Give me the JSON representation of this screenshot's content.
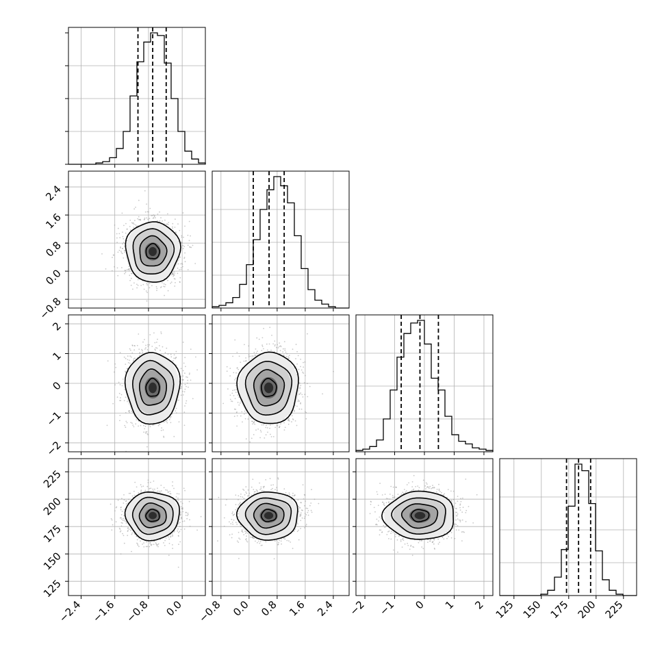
{
  "chart_data": {
    "type": "corner",
    "n_params": 4,
    "grid": true,
    "params": [
      {
        "range": [
          -2.7,
          0.55
        ],
        "ticks": [
          -2.4,
          -1.6,
          -0.8,
          0.0
        ],
        "tick_labels": [
          "−2.4",
          "−1.6",
          "−0.8",
          "0.0"
        ],
        "quantiles": [
          -1.05,
          -0.7,
          -0.38
        ],
        "mean": -0.7,
        "sd": 0.32,
        "hist": {
          "edges": [
            -2.7,
            -2.5375,
            -2.375,
            -2.2125,
            -2.05,
            -1.8875,
            -1.725,
            -1.5625,
            -1.4,
            -1.2375,
            -1.075,
            -0.9125,
            -0.75,
            -0.5875,
            -0.425,
            -0.2625,
            -0.1,
            0.0625,
            0.225,
            0.3875,
            0.55
          ],
          "heights": [
            0,
            0,
            0,
            0,
            0.01,
            0.02,
            0.05,
            0.12,
            0.25,
            0.52,
            0.78,
            0.93,
            1.0,
            0.98,
            0.77,
            0.5,
            0.25,
            0.1,
            0.04,
            0.01
          ]
        }
      },
      {
        "range": [
          -1.05,
          2.85
        ],
        "ticks": [
          -0.8,
          0.0,
          0.8,
          1.6,
          2.4
        ],
        "tick_labels": [
          "−0.8",
          "0.0",
          "0.8",
          "1.6",
          "2.4"
        ],
        "quantiles": [
          0.12,
          0.57,
          1.0
        ],
        "mean": 0.56,
        "sd": 0.43,
        "hist": {
          "edges": [
            -1.05,
            -0.855,
            -0.66,
            -0.465,
            -0.27,
            -0.075,
            0.12,
            0.315,
            0.51,
            0.705,
            0.9,
            1.095,
            1.29,
            1.485,
            1.68,
            1.875,
            2.07,
            2.265,
            2.46,
            2.655,
            2.85
          ],
          "heights": [
            0.01,
            0.02,
            0.04,
            0.08,
            0.18,
            0.33,
            0.52,
            0.75,
            0.9,
            1.0,
            0.93,
            0.8,
            0.55,
            0.3,
            0.14,
            0.06,
            0.03,
            0.01,
            0,
            0
          ]
        }
      },
      {
        "range": [
          -2.3,
          2.3
        ],
        "ticks": [
          -2,
          -1,
          0,
          1,
          2
        ],
        "tick_labels": [
          "−2",
          "−1",
          "0",
          "1",
          "2"
        ],
        "quantiles": [
          -0.78,
          -0.15,
          0.47
        ],
        "mean": -0.15,
        "sd": 0.6,
        "hist": {
          "edges": [
            -2.3,
            -2.07,
            -1.84,
            -1.61,
            -1.38,
            -1.15,
            -0.92,
            -0.69,
            -0.46,
            -0.23,
            0.0,
            0.23,
            0.46,
            0.69,
            0.92,
            1.15,
            1.38,
            1.61,
            1.84,
            2.07,
            2.3
          ],
          "heights": [
            0.01,
            0.02,
            0.04,
            0.09,
            0.25,
            0.47,
            0.72,
            0.9,
            0.98,
            1.0,
            0.82,
            0.56,
            0.47,
            0.27,
            0.13,
            0.08,
            0.06,
            0.03,
            0.02,
            0.01
          ]
        }
      },
      {
        "range": [
          112,
          237
        ],
        "ticks": [
          125,
          150,
          175,
          200,
          225
        ],
        "tick_labels": [
          "125",
          "150",
          "175",
          "200",
          "225"
        ],
        "quantiles": [
          173,
          184,
          195
        ],
        "mean": 185,
        "sd": 11,
        "hist": {
          "edges": [
            112,
            118.25,
            124.5,
            130.75,
            137,
            143.25,
            149.5,
            155.75,
            162,
            168.25,
            174.5,
            180.75,
            187,
            193.25,
            199.5,
            205.75,
            212,
            218.25,
            224.5,
            230.75,
            237
          ],
          "heights": [
            0,
            0,
            0,
            0,
            0,
            0,
            0.01,
            0.04,
            0.14,
            0.35,
            0.68,
            1.0,
            0.95,
            0.7,
            0.34,
            0.12,
            0.04,
            0.01,
            0,
            0
          ]
        }
      }
    ],
    "pairs": [
      {
        "row": 1,
        "col": 0,
        "center": [
          -0.7,
          0.56
        ],
        "contour_sigmas": [
          0.5,
          1.0,
          1.5,
          2.0
        ]
      },
      {
        "row": 2,
        "col": 0,
        "center": [
          -0.7,
          -0.15
        ],
        "contour_sigmas": [
          0.5,
          1.0,
          1.5,
          2.0
        ]
      },
      {
        "row": 2,
        "col": 1,
        "center": [
          0.56,
          -0.15
        ],
        "contour_sigmas": [
          0.5,
          1.0,
          1.5,
          2.0
        ]
      },
      {
        "row": 3,
        "col": 0,
        "center": [
          -0.7,
          185
        ],
        "contour_sigmas": [
          0.5,
          1.0,
          1.5,
          2.0
        ]
      },
      {
        "row": 3,
        "col": 1,
        "center": [
          0.56,
          185
        ],
        "contour_sigmas": [
          0.5,
          1.0,
          1.5,
          2.0
        ]
      },
      {
        "row": 3,
        "col": 2,
        "center": [
          -0.15,
          185
        ],
        "contour_sigmas": [
          0.5,
          1.0,
          1.5,
          2.0
        ]
      }
    ]
  }
}
